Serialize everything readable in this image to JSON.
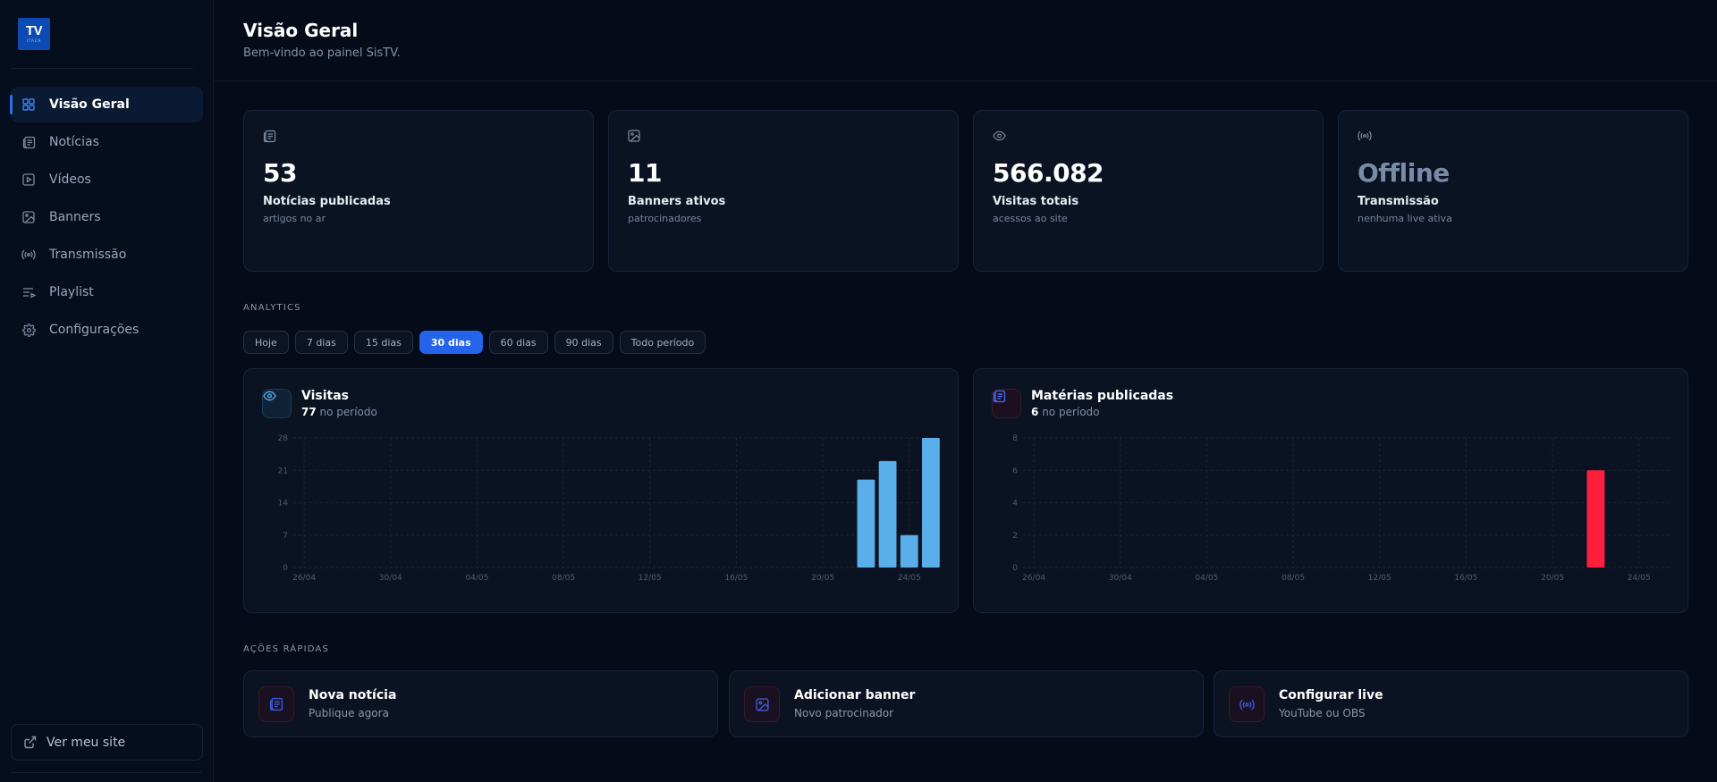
{
  "brand": {
    "logo_text": "TV",
    "logo_small": "ITACA"
  },
  "sidebar": {
    "items": [
      {
        "label": "Visão Geral",
        "icon": "grid-icon",
        "active": true
      },
      {
        "label": "Notícias",
        "icon": "newspaper-icon"
      },
      {
        "label": "Vídeos",
        "icon": "video-icon"
      },
      {
        "label": "Banners",
        "icon": "image-icon"
      },
      {
        "label": "Transmissão",
        "icon": "broadcast-icon"
      },
      {
        "label": "Playlist",
        "icon": "playlist-icon"
      },
      {
        "label": "Configurações",
        "icon": "gear-icon"
      }
    ],
    "site_button": "Ver meu site"
  },
  "header": {
    "title": "Visão Geral",
    "subtitle": "Bem-vindo ao painel SisTV."
  },
  "stats": [
    {
      "value": "53",
      "label": "Notícias publicadas",
      "sub": "artigos no ar",
      "icon": "newspaper-icon"
    },
    {
      "value": "11",
      "label": "Banners ativos",
      "sub": "patrocinadores",
      "icon": "image-icon"
    },
    {
      "value": "566.082",
      "label": "Visitas totais",
      "sub": "acessos ao site",
      "icon": "eye-icon"
    },
    {
      "value": "Offline",
      "label": "Transmissão",
      "sub": "nenhuma live ativa",
      "icon": "broadcast-icon"
    }
  ],
  "analytics": {
    "label": "ANALYTICS",
    "filters": [
      "Hoje",
      "7 dias",
      "15 dias",
      "30 dias",
      "60 dias",
      "90 dias",
      "Todo período"
    ],
    "active_filter": "30 dias"
  },
  "charts": {
    "visits": {
      "title": "Visitas",
      "count": "77",
      "suffix": "no período"
    },
    "articles": {
      "title": "Matérias publicadas",
      "count": "6",
      "suffix": "no período"
    }
  },
  "chart_data": [
    {
      "type": "bar",
      "title": "Visitas",
      "x_ticks": [
        "26/04",
        "30/04",
        "04/05",
        "08/05",
        "12/05",
        "16/05",
        "20/05",
        "24/05"
      ],
      "y_ticks": [
        0,
        7,
        14,
        21,
        28
      ],
      "ylim": [
        0,
        28
      ],
      "x_range": [
        "26/04",
        "25/05"
      ],
      "points": [
        {
          "x": "22/05",
          "y": 19
        },
        {
          "x": "23/05",
          "y": 23
        },
        {
          "x": "24/05",
          "y": 7
        },
        {
          "x": "25/05",
          "y": 28
        }
      ],
      "color": "#5aaee9",
      "grid": true
    },
    {
      "type": "bar",
      "title": "Matérias publicadas",
      "x_ticks": [
        "26/04",
        "30/04",
        "04/05",
        "08/05",
        "12/05",
        "16/05",
        "20/05",
        "24/05"
      ],
      "y_ticks": [
        0,
        2,
        4,
        6,
        8
      ],
      "ylim": [
        0,
        8
      ],
      "x_range": [
        "26/04",
        "25/05"
      ],
      "points": [
        {
          "x": "22/05",
          "y": 6
        }
      ],
      "color": "#ff1f3d",
      "grid": true
    }
  ],
  "quick_actions": {
    "label": "AÇÕES RÁPIDAS",
    "items": [
      {
        "title": "Nova notícia",
        "sub": "Publique agora",
        "icon": "newspaper-icon"
      },
      {
        "title": "Adicionar banner",
        "sub": "Novo patrocinador",
        "icon": "image-icon"
      },
      {
        "title": "Configurar live",
        "sub": "YouTube ou OBS",
        "icon": "broadcast-icon"
      }
    ]
  }
}
